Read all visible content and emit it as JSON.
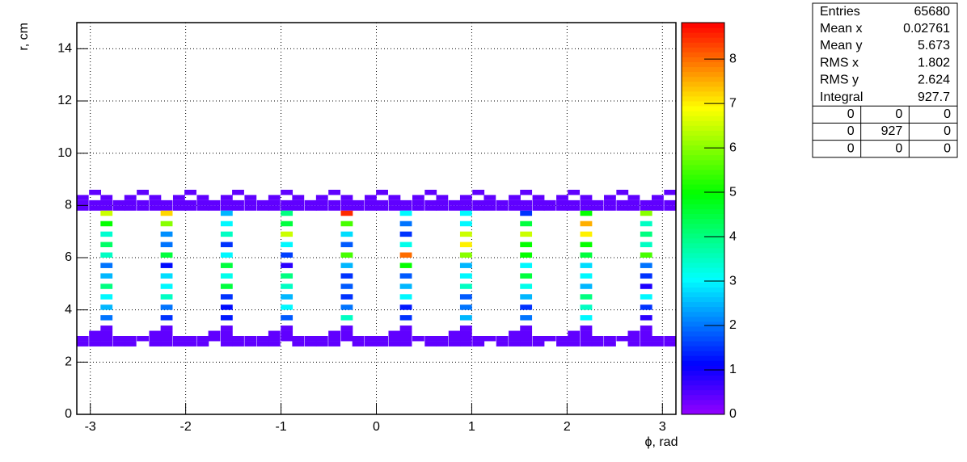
{
  "chart_data": {
    "type": "heatmap",
    "xlabel": "ϕ, rad",
    "ylabel": "r, cm",
    "xlim": [
      -3.1416,
      3.1416
    ],
    "xticks": [
      -3,
      -2,
      -1,
      0,
      1,
      2,
      3
    ],
    "ylim": [
      0,
      15
    ],
    "yticks": [
      0,
      2,
      4,
      6,
      8,
      10,
      12,
      14
    ],
    "zlim": [
      0,
      8.82
    ],
    "zticks": [
      0,
      1,
      2,
      3,
      4,
      5,
      6,
      7,
      8
    ],
    "grid": true,
    "rows": [
      {
        "y": 8.1,
        "x": [
          -3.08,
          -2.95,
          -2.83,
          -2.7,
          -2.58,
          -2.45,
          -2.32,
          -2.2,
          -2.07,
          -1.95,
          -1.82,
          -1.7,
          -1.57,
          -1.45,
          -1.32,
          -1.19,
          -1.07,
          -0.94,
          -0.82,
          -0.69,
          -0.57,
          -0.44,
          -0.31,
          -0.19,
          -0.06,
          0.06,
          0.19,
          0.31,
          0.44,
          0.57,
          0.69,
          0.82,
          0.94,
          1.07,
          1.19,
          1.32,
          1.45,
          1.57,
          1.7,
          1.82,
          1.95,
          2.07,
          2.2,
          2.32,
          2.45,
          2.58,
          2.7,
          2.83,
          2.95,
          3.08
        ],
        "z": [
          0.4,
          0.4,
          0.4,
          0.4,
          0.4,
          0.4,
          0.4,
          0.4,
          0.4,
          0.4,
          0.4,
          0.4,
          0.4,
          0.4,
          0.4,
          0.4,
          0.4,
          0.4,
          0.4,
          0.4,
          0.4,
          0.4,
          0.4,
          0.4,
          0.4,
          0.4,
          0.4,
          0.4,
          0.4,
          0.4,
          0.4,
          0.4,
          0.4,
          0.4,
          0.4,
          0.4,
          0.4,
          0.4,
          0.4,
          0.4,
          0.4,
          0.4,
          0.4,
          0.4,
          0.4,
          0.4,
          0.4,
          0.4,
          0.4,
          0.4
        ]
      },
      {
        "y": 7.9,
        "x": [
          -3.08,
          -2.95,
          -2.83,
          -2.7,
          -2.58,
          -2.45,
          -2.32,
          -2.2,
          -2.07,
          -1.95,
          -1.82,
          -1.7,
          -1.57,
          -1.45,
          -1.32,
          -1.19,
          -1.07,
          -0.94,
          -0.82,
          -0.69,
          -0.57,
          -0.44,
          -0.31,
          -0.19,
          -0.06,
          0.06,
          0.19,
          0.31,
          0.44,
          0.57,
          0.69,
          0.82,
          0.94,
          1.07,
          1.19,
          1.32,
          1.45,
          1.57,
          1.7,
          1.82,
          1.95,
          2.07,
          2.2,
          2.32,
          2.45,
          2.58,
          2.7,
          2.83,
          2.95,
          3.08
        ],
        "z": [
          0.4,
          0.4,
          0.4,
          0.4,
          0.4,
          0.4,
          0.4,
          0.4,
          0.4,
          0.4,
          0.4,
          0.4,
          0.4,
          0.4,
          0.4,
          0.4,
          0.4,
          0.4,
          0.4,
          0.4,
          0.4,
          0.4,
          0.4,
          0.4,
          0.4,
          0.4,
          0.4,
          0.4,
          0.4,
          0.4,
          0.4,
          0.4,
          0.4,
          0.4,
          0.4,
          0.4,
          0.4,
          0.4,
          0.4,
          0.4,
          0.4,
          0.4,
          0.4,
          0.4,
          0.4,
          0.4,
          0.4,
          0.4,
          0.4,
          0.4
        ]
      },
      {
        "y": 8.3,
        "x": [
          -3.08,
          -2.83,
          -2.58,
          -2.32,
          -2.07,
          -1.82,
          -1.57,
          -1.32,
          -1.07,
          -0.82,
          -0.57,
          -0.31,
          -0.06,
          0.19,
          0.44,
          0.69,
          0.94,
          1.19,
          1.45,
          1.7,
          1.95,
          2.2,
          2.45,
          2.7,
          2.95
        ],
        "z": [
          0.4,
          0.4,
          0.4,
          0.4,
          0.4,
          0.4,
          0.4,
          0.4,
          0.4,
          0.4,
          0.4,
          0.4,
          0.4,
          0.4,
          0.4,
          0.4,
          0.4,
          0.4,
          0.4,
          0.4,
          0.4,
          0.4,
          0.4,
          0.4,
          0.4
        ]
      },
      {
        "y": 8.5,
        "x": [
          -2.95,
          -2.45,
          -1.95,
          -1.45,
          -0.94,
          -0.44,
          0.06,
          0.57,
          1.07,
          1.57,
          2.07,
          2.58,
          3.08
        ],
        "z": [
          0.4,
          0.4,
          0.4,
          0.4,
          0.4,
          0.4,
          0.4,
          0.4,
          0.4,
          0.4,
          0.4,
          0.4,
          0.4
        ]
      },
      {
        "y": 2.9,
        "x": [
          -3.08,
          -2.95,
          -2.83,
          -2.7,
          -2.58,
          -2.45,
          -2.32,
          -2.2,
          -2.07,
          -1.95,
          -1.82,
          -1.7,
          -1.57,
          -1.45,
          -1.32,
          -1.19,
          -1.07,
          -0.94,
          -0.82,
          -0.69,
          -0.57,
          -0.44,
          -0.31,
          -0.19,
          -0.06,
          0.06,
          0.19,
          0.31,
          0.44,
          0.57,
          0.69,
          0.82,
          0.94,
          1.07,
          1.19,
          1.32,
          1.45,
          1.57,
          1.7,
          1.82,
          1.95,
          2.07,
          2.2,
          2.32,
          2.45,
          2.58,
          2.7,
          2.83,
          2.95,
          3.08
        ],
        "z": [
          0.4,
          0.4,
          0.4,
          0.4,
          0.4,
          0.4,
          0.4,
          0.4,
          0.4,
          0.4,
          0.4,
          0.4,
          0.4,
          0.4,
          0.4,
          0.4,
          0.4,
          0.4,
          0.4,
          0.4,
          0.4,
          0.4,
          0.4,
          0.4,
          0.4,
          0.4,
          0.4,
          0.4,
          0.4,
          0.4,
          0.4,
          0.4,
          0.4,
          0.4,
          0.4,
          0.4,
          0.4,
          0.4,
          0.4,
          0.4,
          0.4,
          0.4,
          0.4,
          0.4,
          0.4,
          0.4,
          0.4,
          0.4,
          0.4,
          0.4
        ]
      },
      {
        "y": 2.7,
        "x": [
          -3.08,
          -2.95,
          -2.83,
          -2.7,
          -2.58,
          -2.32,
          -2.2,
          -2.07,
          -1.95,
          -1.82,
          -1.57,
          -1.45,
          -1.32,
          -1.19,
          -1.07,
          -0.82,
          -0.69,
          -0.57,
          -0.44,
          -0.19,
          -0.06,
          0.06,
          0.19,
          0.31,
          0.57,
          0.69,
          0.82,
          0.94,
          1.07,
          1.32,
          1.45,
          1.57,
          1.7,
          1.95,
          2.07,
          2.2,
          2.32,
          2.45,
          2.7,
          2.83,
          2.95,
          3.08
        ],
        "z": [
          0.4,
          0.4,
          0.4,
          0.4,
          0.4,
          0.4,
          0.4,
          0.4,
          0.4,
          0.4,
          0.4,
          0.4,
          0.4,
          0.4,
          0.4,
          0.4,
          0.4,
          0.4,
          0.4,
          0.4,
          0.4,
          0.4,
          0.4,
          0.4,
          0.4,
          0.4,
          0.4,
          0.4,
          0.4,
          0.4,
          0.4,
          0.4,
          0.4,
          0.4,
          0.4,
          0.4,
          0.4,
          0.4,
          0.4,
          0.4,
          0.4,
          0.4
        ]
      },
      {
        "y": 3.1,
        "x": [
          -2.95,
          -2.83,
          -2.32,
          -2.2,
          -1.7,
          -1.57,
          -1.07,
          -0.94,
          -0.44,
          -0.31,
          0.19,
          0.31,
          0.82,
          0.94,
          1.45,
          1.57,
          2.07,
          2.2,
          2.7,
          2.83
        ],
        "z": [
          0.4,
          0.4,
          0.4,
          0.4,
          0.4,
          0.4,
          0.4,
          0.4,
          0.4,
          0.4,
          0.4,
          0.4,
          0.4,
          0.4,
          0.4,
          0.4,
          0.4,
          0.4,
          0.4,
          0.4
        ]
      },
      {
        "y": 3.3,
        "x": [
          -2.83,
          -2.2,
          -1.57,
          -0.94,
          -0.31,
          0.31,
          0.94,
          1.57,
          2.2,
          2.83
        ],
        "z": [
          0.4,
          0.4,
          0.4,
          0.4,
          0.4,
          0.4,
          0.4,
          0.4,
          0.4,
          0.4
        ]
      },
      {
        "y": 3.7,
        "x": [
          -2.83,
          -2.2,
          -1.57,
          -0.94,
          -0.31,
          0.31,
          0.94,
          1.57,
          2.2,
          2.83
        ],
        "z": [
          2,
          1.5,
          1.3,
          1.8,
          3.5,
          1.5,
          2.5,
          2,
          3,
          0.8
        ]
      },
      {
        "y": 4.1,
        "x": [
          -2.83,
          -2.2,
          -1.57,
          -0.94,
          -0.31,
          0.31,
          0.94,
          1.57,
          2.2,
          2.83
        ],
        "z": [
          2.5,
          2,
          1.2,
          3,
          2,
          1.3,
          2,
          1.5,
          3.5,
          1.5
        ]
      },
      {
        "y": 4.5,
        "x": [
          -2.83,
          -2.2,
          -1.57,
          -0.94,
          -0.31,
          0.31,
          0.94,
          1.57,
          2.2,
          2.83
        ],
        "z": [
          3,
          3.5,
          1.5,
          2.5,
          1.5,
          3,
          1.8,
          2.5,
          4,
          3
        ]
      },
      {
        "y": 4.9,
        "x": [
          -2.83,
          -2.2,
          -1.57,
          -0.94,
          -0.31,
          0.31,
          0.94,
          1.57,
          2.2,
          2.83
        ],
        "z": [
          4,
          3,
          4.5,
          3.5,
          1.8,
          2.5,
          3.5,
          3.2,
          2.5,
          0.9
        ]
      },
      {
        "y": 5.3,
        "x": [
          -2.83,
          -2.2,
          -1.57,
          -0.94,
          -0.31,
          0.31,
          0.94,
          1.57,
          2.2,
          2.83
        ],
        "z": [
          2.5,
          2.8,
          3.2,
          4,
          1.5,
          1.8,
          3,
          4.5,
          3,
          1.5
        ]
      },
      {
        "y": 5.7,
        "x": [
          -2.83,
          -2.2,
          -1.57,
          -0.94,
          -0.31,
          0.31,
          0.94,
          1.57,
          2.2,
          2.83
        ],
        "z": [
          2,
          1.2,
          4.5,
          0.8,
          2.5,
          5,
          2.5,
          3,
          2.8,
          2
        ]
      },
      {
        "y": 6.1,
        "x": [
          -2.83,
          -2.2,
          -1.57,
          -0.94,
          -0.31,
          0.31,
          0.94,
          1.57,
          2.2,
          2.83
        ],
        "z": [
          3.5,
          4.5,
          3,
          1.6,
          5.5,
          8,
          6,
          5,
          4.5,
          5.5
        ]
      },
      {
        "y": 6.5,
        "x": [
          -2.83,
          -2.2,
          -1.57,
          -0.94,
          -0.31,
          0.31,
          0.94,
          1.57,
          2.2,
          2.83
        ],
        "z": [
          4.2,
          2,
          1.5,
          3,
          1.8,
          3.2,
          7,
          5,
          5,
          3.5
        ]
      },
      {
        "y": 6.9,
        "x": [
          -2.83,
          -2.2,
          -1.57,
          -0.94,
          -0.31,
          0.31,
          0.94,
          1.57,
          2.2,
          2.83
        ],
        "z": [
          3.4,
          2.2,
          3.5,
          6.5,
          2.8,
          1.5,
          6.5,
          6.5,
          7,
          4
        ]
      },
      {
        "y": 7.3,
        "x": [
          -2.83,
          -2.2,
          -1.57,
          -0.94,
          -0.31,
          0.31,
          0.94,
          1.57,
          2.2,
          2.83
        ],
        "z": [
          5,
          6,
          3,
          4.5,
          5.5,
          2,
          3,
          4.5,
          7.5,
          3.5
        ]
      },
      {
        "y": 7.7,
        "x": [
          -2.83,
          -2.2,
          -1.57,
          -0.94,
          -0.31,
          0.31,
          0.94,
          1.57,
          2.2,
          2.83
        ],
        "z": [
          6.5,
          7.2,
          2.5,
          4,
          8.5,
          3,
          3,
          1.5,
          5,
          6
        ]
      }
    ],
    "stats": [
      {
        "label": "Entries",
        "value": 65680
      },
      {
        "label": "Mean x",
        "value": 0.02761
      },
      {
        "label": "Mean y",
        "value": 5.673
      },
      {
        "label": "RMS x",
        "value": 1.802
      },
      {
        "label": "RMS y",
        "value": 2.624
      },
      {
        "label": "Integral",
        "value": 927.7
      }
    ],
    "stats_table": [
      [
        0,
        0,
        0
      ],
      [
        0,
        927,
        0
      ],
      [
        0,
        0,
        0
      ]
    ]
  }
}
